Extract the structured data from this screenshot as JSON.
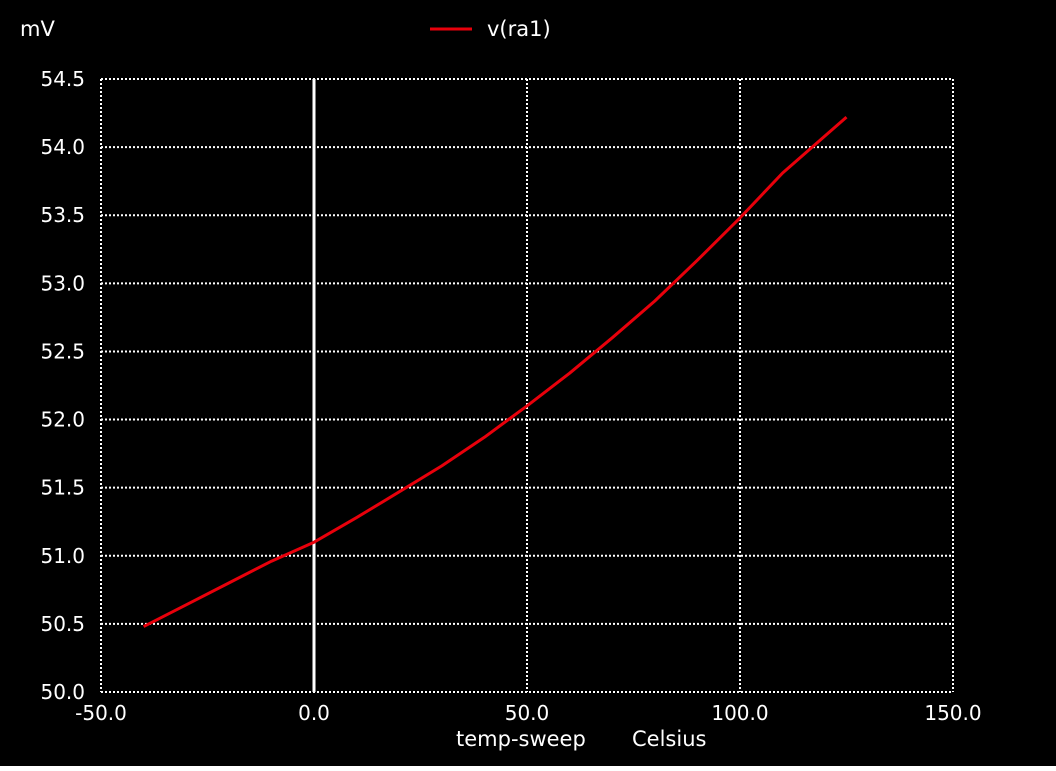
{
  "chart_data": {
    "type": "line",
    "ylabel_unit": "mV",
    "xlabel": "temp-sweep",
    "xlabel_unit": "Celsius",
    "xlim": [
      -50,
      150
    ],
    "ylim": [
      50.0,
      54.5
    ],
    "xticks": [
      -50,
      0,
      50,
      100,
      150
    ],
    "xtick_labels": [
      "-50.0",
      "0.0",
      "50.0",
      "100.0",
      "150.0"
    ],
    "yticks": [
      50.0,
      50.5,
      51.0,
      51.5,
      52.0,
      52.5,
      53.0,
      53.5,
      54.0,
      54.5
    ],
    "ytick_labels": [
      "50.0",
      "50.5",
      "51.0",
      "51.5",
      "52.0",
      "52.5",
      "53.0",
      "53.5",
      "54.0",
      "54.5"
    ],
    "grid": true,
    "legend_position": "top-center",
    "background_color": "#000000",
    "grid_color": "#ffffff",
    "series": [
      {
        "name": "v(ra1)",
        "color": "#e8000b",
        "x": [
          -40,
          -30,
          -20,
          -10,
          0,
          10,
          20,
          30,
          40,
          50,
          60,
          70,
          80,
          90,
          100,
          110,
          125
        ],
        "y": [
          50.48,
          50.64,
          50.8,
          50.96,
          51.1,
          51.28,
          51.47,
          51.66,
          51.87,
          52.1,
          52.34,
          52.6,
          52.87,
          53.17,
          53.48,
          53.81,
          54.22
        ]
      }
    ],
    "annotations": [
      {
        "type": "vertical-line",
        "x": 0,
        "color": "#ffffff"
      }
    ]
  }
}
